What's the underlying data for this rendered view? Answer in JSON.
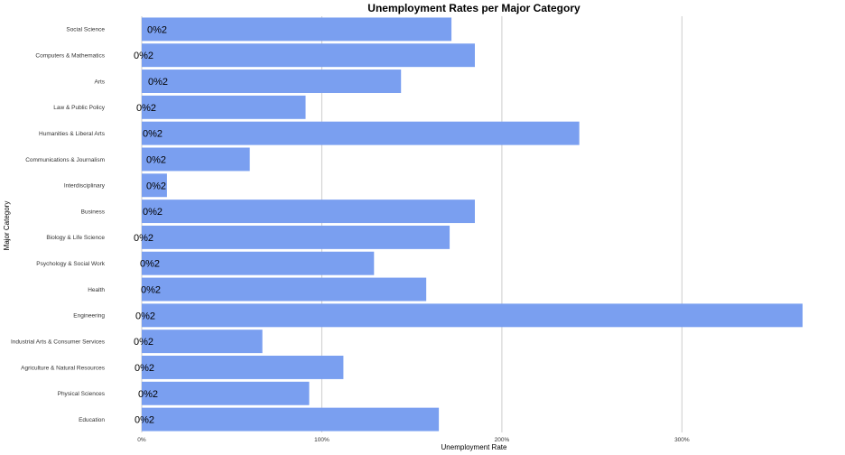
{
  "chart_data": {
    "type": "bar",
    "orientation": "horizontal",
    "title": "Unemployment Rates per Major Category",
    "xlabel": "Unemployment Rate",
    "ylabel": "Major Category",
    "categories": [
      "Social Science",
      "Computers & Mathematics",
      "Arts",
      "Law & Public Policy",
      "Humanities & Liberal Arts",
      "Communications & Journalism",
      "Interdisciplinary",
      "Business",
      "Biology & Life Science",
      "Psychology & Social Work",
      "Health",
      "Engineering",
      "Industrial Arts & Consumer Services",
      "Agriculture & Natural Resources",
      "Physical Sciences",
      "Education"
    ],
    "values": [
      172,
      185,
      144,
      91,
      243,
      60,
      14,
      185,
      171,
      129,
      158,
      367,
      67,
      112,
      93,
      165
    ],
    "data_labels": [
      "0%2",
      "0%2",
      "0%2",
      "0%2",
      "0%2",
      "0%2",
      "0%2",
      "0%2",
      "0%2",
      "0%2",
      "0%2",
      "0%2",
      "0%2",
      "0%2",
      "0%2",
      "0%2"
    ],
    "label_offsets": [
      4,
      -11,
      5,
      -8,
      -1,
      3,
      3,
      -1,
      -11,
      -4,
      -3,
      -9,
      -11,
      -10,
      -6,
      -10
    ],
    "xticks": [
      0,
      100,
      200,
      300
    ],
    "xtick_labels": [
      "0%",
      "100%",
      "200%",
      "300%"
    ],
    "xlim": [
      0,
      370
    ],
    "grid": true,
    "bar_color": "#7a9ff0"
  }
}
